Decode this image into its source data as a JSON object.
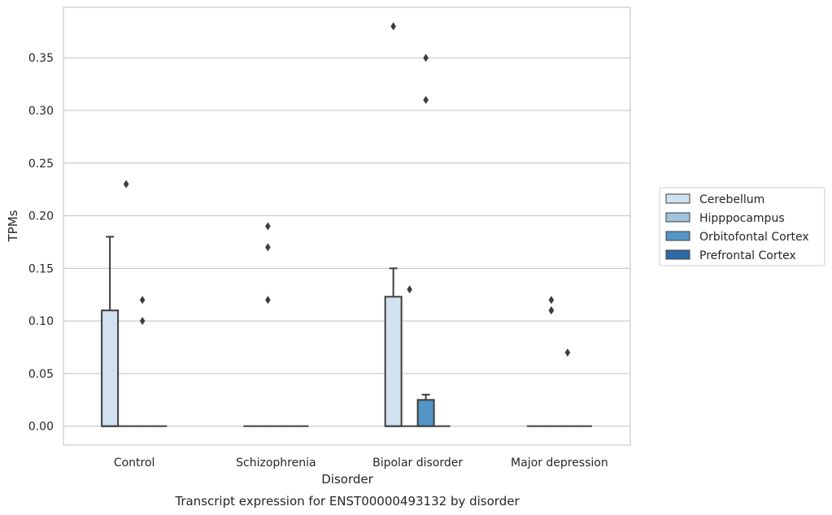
{
  "chart_data": {
    "type": "box",
    "caption": "Transcript expression for ENST00000493132 by disorder",
    "xlabel": "Disorder",
    "ylabel": "TPMs",
    "ylim": [
      -0.018,
      0.398
    ],
    "yticks": [
      0.0,
      0.05,
      0.1,
      0.15,
      0.2,
      0.25,
      0.3,
      0.35
    ],
    "ytick_labels": [
      "0.00",
      "0.05",
      "0.10",
      "0.15",
      "0.20",
      "0.25",
      "0.30",
      "0.35"
    ],
    "grid": "horizontal",
    "legend_position": "right",
    "categories": [
      "Control",
      "Schizophrenia",
      "Bipolar disorder",
      "Major depression"
    ],
    "series": [
      {
        "name": "Cerebellum",
        "color": "#d1e1f0",
        "boxes": [
          {
            "q1": 0.0,
            "median": 0.0,
            "q3": 0.11,
            "whisker_low": 0.0,
            "whisker_high": 0.18,
            "outliers": []
          },
          {
            "q1": 0.0,
            "median": 0.0,
            "q3": 0.0,
            "whisker_low": 0.0,
            "whisker_high": 0.0,
            "outliers": []
          },
          {
            "q1": 0.0,
            "median": 0.0,
            "q3": 0.123,
            "whisker_low": 0.0,
            "whisker_high": 0.15,
            "outliers": [
              0.38
            ]
          },
          {
            "q1": 0.0,
            "median": 0.0,
            "q3": 0.0,
            "whisker_low": 0.0,
            "whisker_high": 0.0,
            "outliers": []
          }
        ]
      },
      {
        "name": "Hipppocampus",
        "color": "#a0c3dc",
        "boxes": [
          {
            "q1": 0.0,
            "median": 0.0,
            "q3": 0.0,
            "whisker_low": 0.0,
            "whisker_high": 0.0,
            "outliers": [
              0.23
            ]
          },
          {
            "q1": 0.0,
            "median": 0.0,
            "q3": 0.0,
            "whisker_low": 0.0,
            "whisker_high": 0.0,
            "outliers": [
              0.12,
              0.17,
              0.19
            ]
          },
          {
            "q1": 0.0,
            "median": 0.0,
            "q3": 0.0,
            "whisker_low": 0.0,
            "whisker_high": 0.0,
            "outliers": [
              0.13
            ]
          },
          {
            "q1": 0.0,
            "median": 0.0,
            "q3": 0.0,
            "whisker_low": 0.0,
            "whisker_high": 0.0,
            "outliers": [
              0.11,
              0.11,
              0.12
            ]
          }
        ]
      },
      {
        "name": "Orbitofontal Cortex",
        "color": "#5396c6",
        "boxes": [
          {
            "q1": 0.0,
            "median": 0.0,
            "q3": 0.0,
            "whisker_low": 0.0,
            "whisker_high": 0.0,
            "outliers": [
              0.1,
              0.12
            ]
          },
          {
            "q1": 0.0,
            "median": 0.0,
            "q3": 0.0,
            "whisker_low": 0.0,
            "whisker_high": 0.0,
            "outliers": []
          },
          {
            "q1": 0.0,
            "median": 0.0,
            "q3": 0.025,
            "whisker_low": 0.0,
            "whisker_high": 0.03,
            "outliers": [
              0.31,
              0.35
            ]
          },
          {
            "q1": 0.0,
            "median": 0.0,
            "q3": 0.0,
            "whisker_low": 0.0,
            "whisker_high": 0.0,
            "outliers": [
              0.07
            ]
          }
        ]
      },
      {
        "name": "Prefrontal Cortex",
        "color": "#2e6aa8",
        "boxes": [
          {
            "q1": 0.0,
            "median": 0.0,
            "q3": 0.0,
            "whisker_low": 0.0,
            "whisker_high": 0.0,
            "outliers": []
          },
          {
            "q1": 0.0,
            "median": 0.0,
            "q3": 0.0,
            "whisker_low": 0.0,
            "whisker_high": 0.0,
            "outliers": []
          },
          {
            "q1": 0.0,
            "median": 0.0,
            "q3": 0.0,
            "whisker_low": 0.0,
            "whisker_high": 0.0,
            "outliers": []
          },
          {
            "q1": 0.0,
            "median": 0.0,
            "q3": 0.0,
            "whisker_low": 0.0,
            "whisker_high": 0.0,
            "outliers": []
          }
        ]
      }
    ]
  }
}
